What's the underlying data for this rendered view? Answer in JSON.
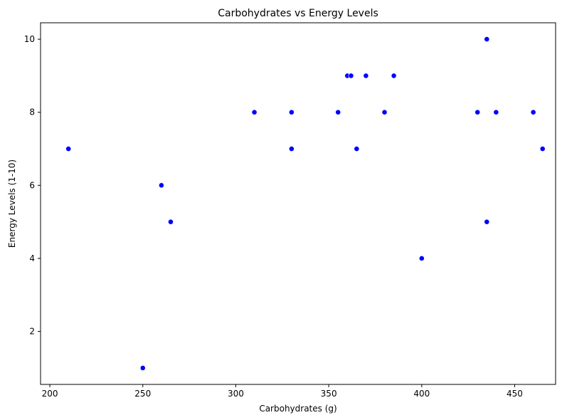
{
  "chart_data": {
    "type": "scatter",
    "title": "Carbohydrates vs Energy Levels",
    "xlabel": "Carbohydrates (g)",
    "ylabel": "Energy Levels (1-10)",
    "xlim": [
      195,
      472
    ],
    "ylim": [
      0.55,
      10.45
    ],
    "xticks": [
      200,
      250,
      300,
      350,
      400,
      450
    ],
    "yticks": [
      2,
      4,
      6,
      8,
      10
    ],
    "grid": false,
    "legend": "none",
    "marker_color": "#0000ff",
    "x": [
      210,
      250,
      260,
      265,
      310,
      330,
      330,
      355,
      360,
      362,
      365,
      370,
      380,
      385,
      400,
      430,
      435,
      435,
      440,
      460,
      465
    ],
    "y": [
      7,
      1,
      6,
      5,
      8,
      8,
      7,
      8,
      9,
      9,
      7,
      9,
      8,
      9,
      4,
      8,
      10,
      5,
      8,
      8,
      7
    ]
  }
}
